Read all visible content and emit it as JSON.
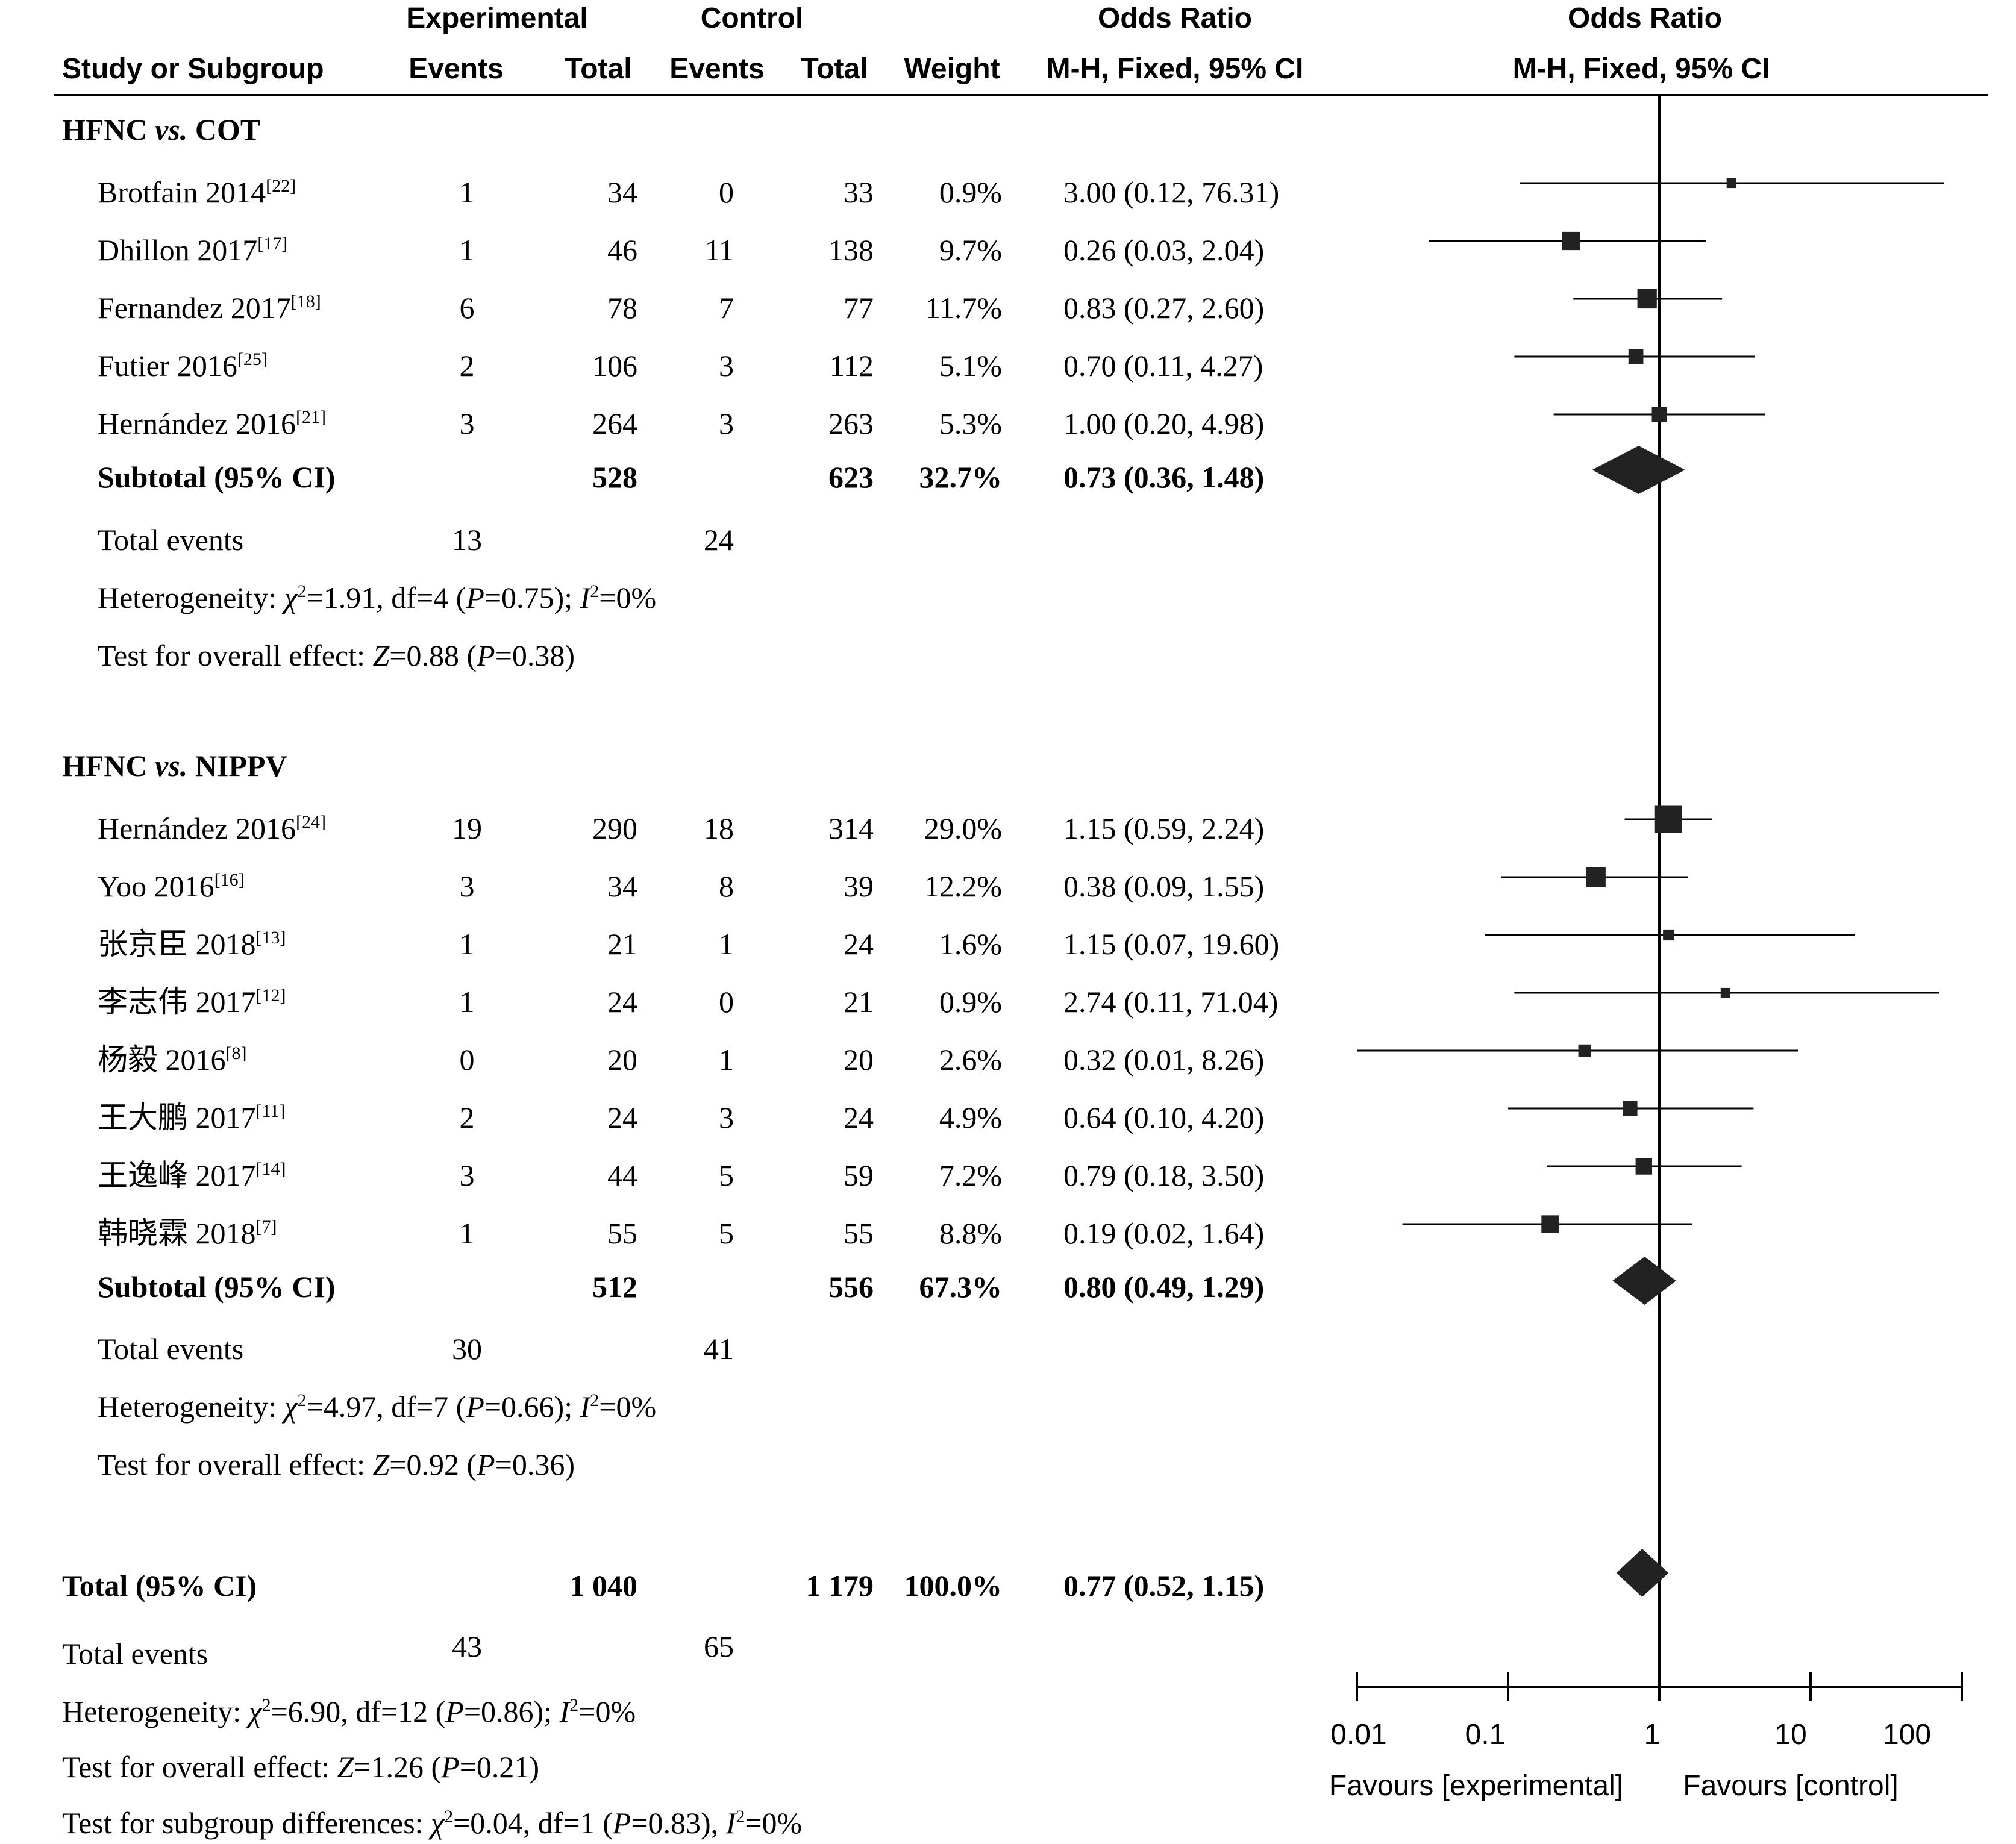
{
  "header": {
    "experimental": "Experimental",
    "control": "Control",
    "odds_ratio_left": "Odds Ratio",
    "odds_ratio_right": "Odds Ratio",
    "study": "Study or Subgroup",
    "exp_events": "Events",
    "exp_total": "Total",
    "ctl_events": "Events",
    "ctl_total": "Total",
    "weight": "Weight",
    "method_left": "M-H, Fixed, 95% CI",
    "method_right": "M-H, Fixed, 95% CI"
  },
  "groups": [
    {
      "title_a": "HFNC ",
      "title_vs": "vs.",
      "title_b": " COT",
      "studies": [
        {
          "name": "Brotfain 2014",
          "ref": "[22]",
          "e_events": "1",
          "e_total": "34",
          "c_events": "0",
          "c_total": "33",
          "weight": "0.9%",
          "ci_text": "3.00 (0.12, 76.31)"
        },
        {
          "name": "Dhillon 2017",
          "ref": "[17]",
          "e_events": "1",
          "e_total": "46",
          "c_events": "11",
          "c_total": "138",
          "weight": "9.7%",
          "ci_text": "0.26 (0.03, 2.04)"
        },
        {
          "name": "Fernandez 2017",
          "ref": "[18]",
          "e_events": "6",
          "e_total": "78",
          "c_events": "7",
          "c_total": "77",
          "weight": "11.7%",
          "ci_text": "0.83 (0.27, 2.60)"
        },
        {
          "name": "Futier 2016",
          "ref": "[25]",
          "e_events": "2",
          "e_total": "106",
          "c_events": "3",
          "c_total": "112",
          "weight": "5.1%",
          "ci_text": "0.70 (0.11, 4.27)"
        },
        {
          "name": "Hernández 2016",
          "ref": "[21]",
          "e_events": "3",
          "e_total": "264",
          "c_events": "3",
          "c_total": "263",
          "weight": "5.3%",
          "ci_text": "1.00 (0.20, 4.98)"
        }
      ],
      "subtotal": {
        "label": "Subtotal (95% CI)",
        "e_total": "528",
        "c_total": "623",
        "weight": "32.7%",
        "ci_text": "0.73 (0.36, 1.48)"
      },
      "total_events": {
        "label": "Total events",
        "e": "13",
        "c": "24"
      },
      "heterogeneity": {
        "pre": "Heterogeneity: ",
        "chi": "χ",
        "chi_sup": "2",
        "mid1": "=1.91, df=4 (",
        "p": "P",
        "mid2": "=0.75); ",
        "i": "I",
        "i_sup": "2",
        "post": "=0%"
      },
      "overall": {
        "pre": "Test for overall effect: ",
        "z": "Z",
        "mid1": "=0.88 (",
        "p": "P",
        "post": "=0.38)"
      }
    },
    {
      "title_a": "HFNC ",
      "title_vs": "vs.",
      "title_b": " NIPPV",
      "studies": [
        {
          "name": "Hernández 2016",
          "ref": "[24]",
          "e_events": "19",
          "e_total": "290",
          "c_events": "18",
          "c_total": "314",
          "weight": "29.0%",
          "ci_text": "1.15 (0.59, 2.24)"
        },
        {
          "name": "Yoo 2016",
          "ref": "[16]",
          "e_events": "3",
          "e_total": "34",
          "c_events": "8",
          "c_total": "39",
          "weight": "12.2%",
          "ci_text": "0.38 (0.09, 1.55)"
        },
        {
          "name": "张京臣 2018",
          "ref": "[13]",
          "e_events": "1",
          "e_total": "21",
          "c_events": "1",
          "c_total": "24",
          "weight": "1.6%",
          "ci_text": "1.15 (0.07, 19.60)"
        },
        {
          "name": "李志伟 2017",
          "ref": "[12]",
          "e_events": "1",
          "e_total": "24",
          "c_events": "0",
          "c_total": "21",
          "weight": "0.9%",
          "ci_text": "2.74 (0.11, 71.04)"
        },
        {
          "name": "杨毅 2016",
          "ref": "[8]",
          "e_events": "0",
          "e_total": "20",
          "c_events": "1",
          "c_total": "20",
          "weight": "2.6%",
          "ci_text": "0.32 (0.01, 8.26)"
        },
        {
          "name": "王大鹏 2017",
          "ref": "[11]",
          "e_events": "2",
          "e_total": "24",
          "c_events": "3",
          "c_total": "24",
          "weight": "4.9%",
          "ci_text": "0.64 (0.10, 4.20)"
        },
        {
          "name": "王逸峰 2017",
          "ref": "[14]",
          "e_events": "3",
          "e_total": "44",
          "c_events": "5",
          "c_total": "59",
          "weight": "7.2%",
          "ci_text": "0.79 (0.18, 3.50)"
        },
        {
          "name": "韩晓霖 2018",
          "ref": "[7]",
          "e_events": "1",
          "e_total": "55",
          "c_events": "5",
          "c_total": "55",
          "weight": "8.8%",
          "ci_text": "0.19 (0.02, 1.64)"
        }
      ],
      "subtotal": {
        "label": "Subtotal (95% CI)",
        "e_total": "512",
        "c_total": "556",
        "weight": "67.3%",
        "ci_text": "0.80 (0.49, 1.29)"
      },
      "total_events": {
        "label": "Total events",
        "e": "30",
        "c": "41"
      },
      "heterogeneity": {
        "pre": "Heterogeneity: ",
        "chi": "χ",
        "chi_sup": "2",
        "mid1": "=4.97, df=7 (",
        "p": "P",
        "mid2": "=0.66); ",
        "i": "I",
        "i_sup": "2",
        "post": "=0%"
      },
      "overall": {
        "pre": "Test for overall effect: ",
        "z": "Z",
        "mid1": "=0.92 (",
        "p": "P",
        "post": "=0.36)"
      }
    }
  ],
  "total": {
    "label": "Total (95% CI)",
    "e_total": "1 040",
    "c_total": "1 179",
    "weight": "100.0%",
    "ci_text": "0.77 (0.52, 1.15)",
    "events_label": "Total events",
    "e_events": "43",
    "c_events": "65",
    "heterogeneity": {
      "pre": "Heterogeneity: ",
      "chi": "χ",
      "chi_sup": "2",
      "mid1": "=6.90, df=12 (",
      "p": "P",
      "mid2": "=0.86); ",
      "i": "I",
      "i_sup": "2",
      "post": "=0%"
    },
    "overall": {
      "pre": "Test for overall effect: ",
      "z": "Z",
      "mid1": "=1.26 (",
      "p": "P",
      "post": "=0.21)"
    },
    "subgroup": {
      "pre": "Test for subgroup differences: ",
      "chi": "χ",
      "chi_sup": "2",
      "mid1": "=0.04, df=1 (",
      "p": "P",
      "mid2": "=0.83), ",
      "i": "I",
      "i_sup": "2",
      "post": "=0%"
    }
  },
  "axis": {
    "ticks": [
      "0.01",
      "0.1",
      "1",
      "10",
      "100"
    ],
    "favours_left": "Favours [experimental]",
    "favours_right": "Favours [control]"
  },
  "chart_data": {
    "type": "forest",
    "scale": "log",
    "xlim": [
      0.01,
      100
    ],
    "reference_line": 1,
    "x_ticks": [
      0.01,
      0.1,
      1,
      10,
      100
    ],
    "studies": [
      {
        "group": "HFNC vs. COT",
        "or": 3.0,
        "lo": 0.12,
        "hi": 76.31,
        "weight": 0.9
      },
      {
        "group": "HFNC vs. COT",
        "or": 0.26,
        "lo": 0.03,
        "hi": 2.04,
        "weight": 9.7
      },
      {
        "group": "HFNC vs. COT",
        "or": 0.83,
        "lo": 0.27,
        "hi": 2.6,
        "weight": 11.7
      },
      {
        "group": "HFNC vs. COT",
        "or": 0.7,
        "lo": 0.11,
        "hi": 4.27,
        "weight": 5.1
      },
      {
        "group": "HFNC vs. COT",
        "or": 1.0,
        "lo": 0.2,
        "hi": 4.98,
        "weight": 5.3
      },
      {
        "group": "HFNC vs. NIPPV",
        "or": 1.15,
        "lo": 0.59,
        "hi": 2.24,
        "weight": 29.0
      },
      {
        "group": "HFNC vs. NIPPV",
        "or": 0.38,
        "lo": 0.09,
        "hi": 1.55,
        "weight": 12.2
      },
      {
        "group": "HFNC vs. NIPPV",
        "or": 1.15,
        "lo": 0.07,
        "hi": 19.6,
        "weight": 1.6
      },
      {
        "group": "HFNC vs. NIPPV",
        "or": 2.74,
        "lo": 0.11,
        "hi": 71.04,
        "weight": 0.9
      },
      {
        "group": "HFNC vs. NIPPV",
        "or": 0.32,
        "lo": 0.01,
        "hi": 8.26,
        "weight": 2.6
      },
      {
        "group": "HFNC vs. NIPPV",
        "or": 0.64,
        "lo": 0.1,
        "hi": 4.2,
        "weight": 4.9
      },
      {
        "group": "HFNC vs. NIPPV",
        "or": 0.79,
        "lo": 0.18,
        "hi": 3.5,
        "weight": 7.2
      },
      {
        "group": "HFNC vs. NIPPV",
        "or": 0.19,
        "lo": 0.02,
        "hi": 1.64,
        "weight": 8.8
      }
    ],
    "subtotals": [
      {
        "group": "HFNC vs. COT",
        "or": 0.73,
        "lo": 0.36,
        "hi": 1.48
      },
      {
        "group": "HFNC vs. NIPPV",
        "or": 0.8,
        "lo": 0.49,
        "hi": 1.29
      }
    ],
    "overall": {
      "or": 0.77,
      "lo": 0.52,
      "hi": 1.15
    }
  }
}
